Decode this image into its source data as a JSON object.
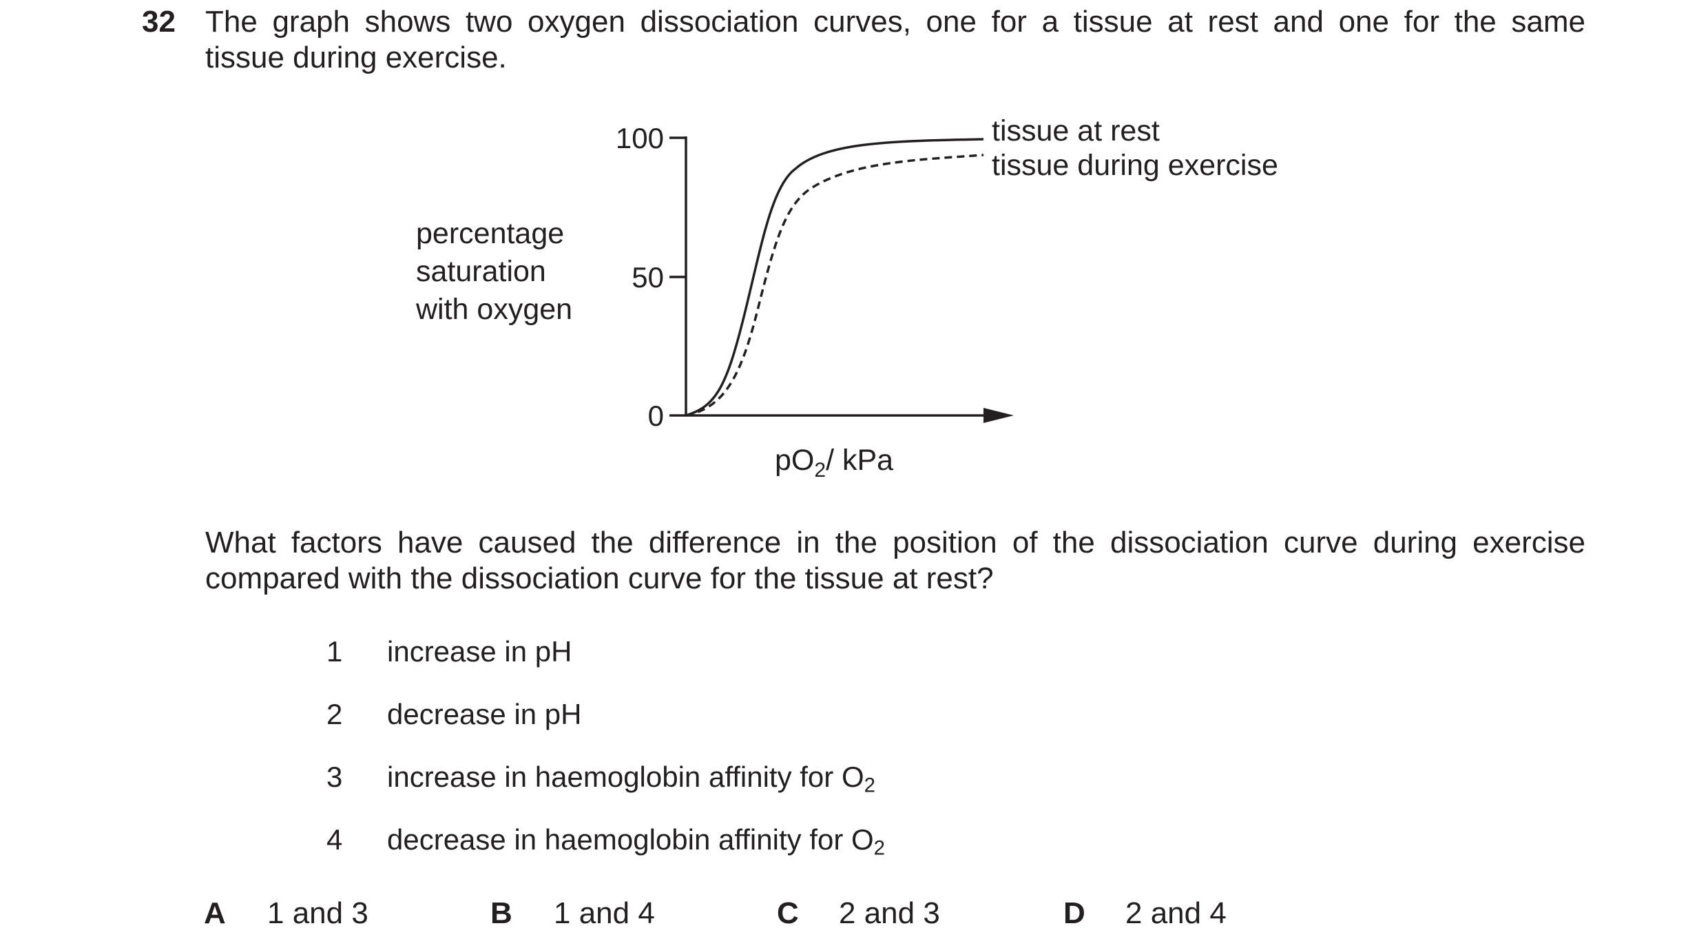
{
  "question": {
    "number": "32",
    "stem_line1": "The graph shows two oxygen dissociation curves, one for a tissue at rest and one for the same",
    "stem_line2": "tissue during exercise."
  },
  "chart_data": {
    "type": "line",
    "ylabel_lines": [
      "percentage",
      "saturation",
      "with oxygen"
    ],
    "xlabel_main": "pO",
    "xlabel_sub": "2",
    "xlabel_unit": "/ kPa",
    "yticks": [
      "0",
      "50",
      "100"
    ],
    "ylim": [
      0,
      100
    ],
    "series": [
      {
        "name": "tissue at rest",
        "style": "solid",
        "shape": "sigmoid",
        "relative_position": "left"
      },
      {
        "name": "tissue during exercise",
        "style": "dashed",
        "shape": "sigmoid",
        "relative_position": "right"
      }
    ]
  },
  "prompt": {
    "line1": "What factors have caused the difference in the position of the dissociation curve during exercise",
    "line2": "compared with the dissociation curve for the tissue at rest?"
  },
  "statements": [
    {
      "num": "1",
      "text": "increase in pH",
      "sub": ""
    },
    {
      "num": "2",
      "text": "decrease in pH",
      "sub": ""
    },
    {
      "num": "3",
      "text": "increase in haemoglobin affinity for O",
      "sub": "2"
    },
    {
      "num": "4",
      "text": "decrease in haemoglobin affinity for O",
      "sub": "2"
    }
  ],
  "options": [
    {
      "letter": "A",
      "text": "1 and 3"
    },
    {
      "letter": "B",
      "text": "1 and 4"
    },
    {
      "letter": "C",
      "text": "2 and 3"
    },
    {
      "letter": "D",
      "text": "2 and 4"
    }
  ]
}
